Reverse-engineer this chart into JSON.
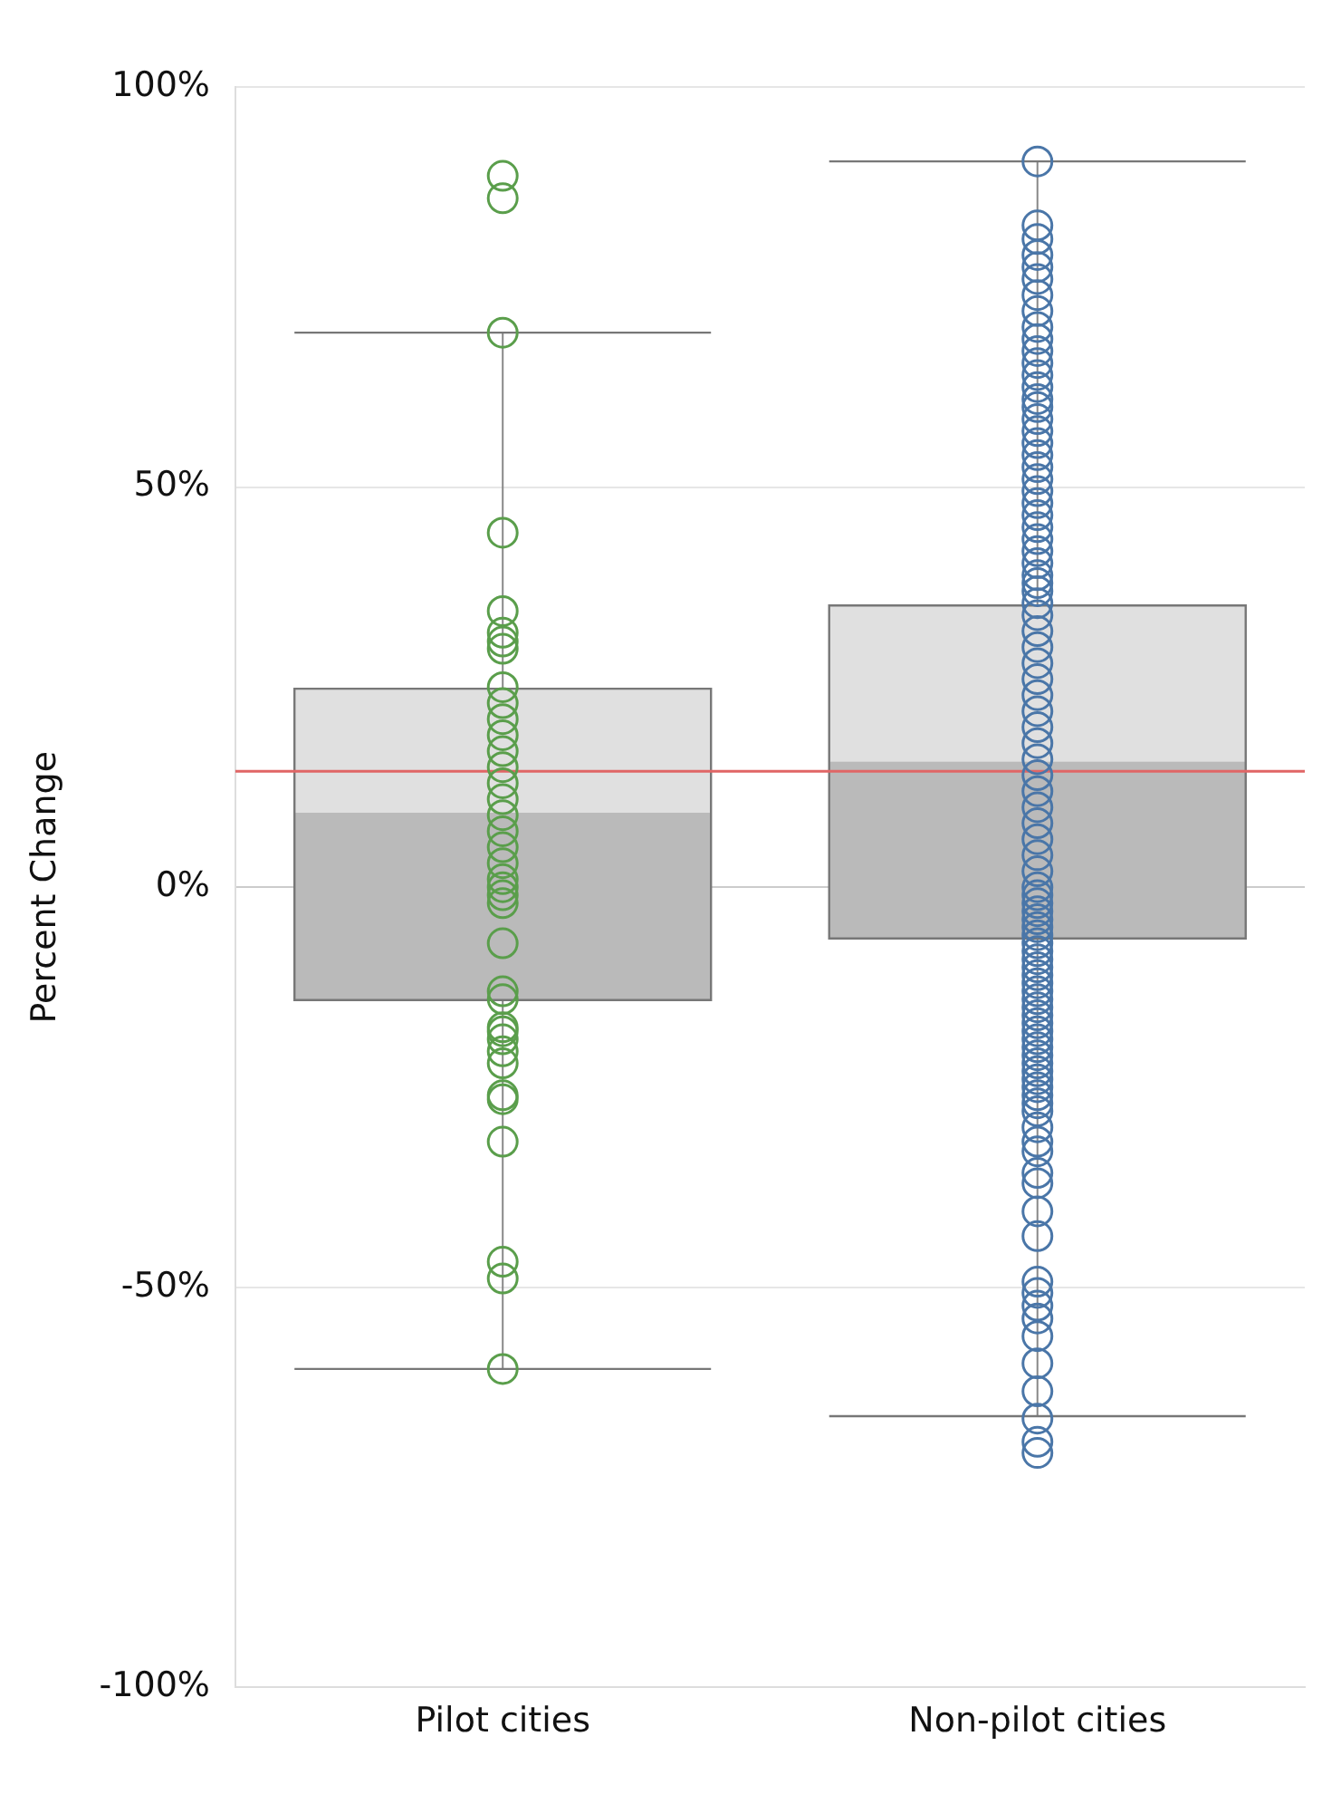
{
  "chart_data": {
    "type": "box",
    "ylabel": "Percent Change",
    "categories": [
      "Pilot cities",
      "Non-pilot cities"
    ],
    "boxes": [
      {
        "low": -60.2,
        "q1": -14.1,
        "median": 9.3,
        "q3": 24.8,
        "high": 69.3
      },
      {
        "low": -66.1,
        "q1": -6.4,
        "median": 15.7,
        "q3": 35.2,
        "high": 90.7
      }
    ],
    "series": [
      {
        "type": "scatter",
        "color": "#5a9e4b",
        "x": [
          "Pilot cities",
          "Pilot cities",
          "Pilot cities",
          "Pilot cities",
          "Pilot cities",
          "Pilot cities",
          "Pilot cities",
          "Pilot cities",
          "Pilot cities",
          "Pilot cities",
          "Pilot cities",
          "Pilot cities",
          "Pilot cities",
          "Pilot cities",
          "Pilot cities",
          "Pilot cities",
          "Pilot cities",
          "Pilot cities",
          "Pilot cities",
          "Pilot cities",
          "Pilot cities",
          "Pilot cities",
          "Pilot cities",
          "Pilot cities",
          "Pilot cities",
          "Pilot cities",
          "Pilot cities",
          "Pilot cities",
          "Pilot cities",
          "Pilot cities",
          "Pilot cities",
          "Pilot cities",
          "Pilot cities",
          "Pilot cities",
          "Pilot cities",
          "Pilot cities",
          "Pilot cities",
          "Pilot cities"
        ],
        "values": [
          88.9,
          86.1,
          69.3,
          44.3,
          34.5,
          31.8,
          30.7,
          29.8,
          25,
          23,
          21,
          19,
          17,
          15,
          13,
          11,
          9,
          7,
          5,
          3,
          1,
          0,
          -1,
          -2,
          -7,
          -13,
          -14,
          -17.5,
          -19,
          -20.5,
          -22,
          -26,
          -26.5,
          -31.8,
          -46.8,
          -48.9,
          -60.2,
          -18
        ]
      },
      {
        "type": "scatter",
        "color": "#4a76a8",
        "x": [
          "Non-pilot cities",
          "Non-pilot cities",
          "Non-pilot cities",
          "Non-pilot cities",
          "Non-pilot cities",
          "Non-pilot cities",
          "Non-pilot cities",
          "Non-pilot cities",
          "Non-pilot cities",
          "Non-pilot cities",
          "Non-pilot cities",
          "Non-pilot cities",
          "Non-pilot cities",
          "Non-pilot cities",
          "Non-pilot cities",
          "Non-pilot cities",
          "Non-pilot cities",
          "Non-pilot cities",
          "Non-pilot cities",
          "Non-pilot cities",
          "Non-pilot cities",
          "Non-pilot cities",
          "Non-pilot cities",
          "Non-pilot cities",
          "Non-pilot cities",
          "Non-pilot cities",
          "Non-pilot cities",
          "Non-pilot cities",
          "Non-pilot cities",
          "Non-pilot cities",
          "Non-pilot cities",
          "Non-pilot cities",
          "Non-pilot cities",
          "Non-pilot cities",
          "Non-pilot cities",
          "Non-pilot cities",
          "Non-pilot cities",
          "Non-pilot cities",
          "Non-pilot cities",
          "Non-pilot cities",
          "Non-pilot cities",
          "Non-pilot cities",
          "Non-pilot cities",
          "Non-pilot cities",
          "Non-pilot cities",
          "Non-pilot cities",
          "Non-pilot cities",
          "Non-pilot cities",
          "Non-pilot cities",
          "Non-pilot cities",
          "Non-pilot cities",
          "Non-pilot cities",
          "Non-pilot cities",
          "Non-pilot cities",
          "Non-pilot cities",
          "Non-pilot cities",
          "Non-pilot cities",
          "Non-pilot cities",
          "Non-pilot cities",
          "Non-pilot cities",
          "Non-pilot cities",
          "Non-pilot cities",
          "Non-pilot cities",
          "Non-pilot cities",
          "Non-pilot cities",
          "Non-pilot cities",
          "Non-pilot cities",
          "Non-pilot cities",
          "Non-pilot cities",
          "Non-pilot cities",
          "Non-pilot cities",
          "Non-pilot cities",
          "Non-pilot cities",
          "Non-pilot cities",
          "Non-pilot cities",
          "Non-pilot cities",
          "Non-pilot cities",
          "Non-pilot cities",
          "Non-pilot cities",
          "Non-pilot cities",
          "Non-pilot cities",
          "Non-pilot cities",
          "Non-pilot cities",
          "Non-pilot cities",
          "Non-pilot cities",
          "Non-pilot cities",
          "Non-pilot cities",
          "Non-pilot cities",
          "Non-pilot cities",
          "Non-pilot cities",
          "Non-pilot cities",
          "Non-pilot cities",
          "Non-pilot cities",
          "Non-pilot cities",
          "Non-pilot cities",
          "Non-pilot cities"
        ],
        "values": [
          90.7,
          82.7,
          81,
          79,
          77.5,
          76,
          74,
          72,
          70,
          68.5,
          67,
          65.5,
          64,
          62.5,
          61,
          60,
          58.5,
          57,
          55.5,
          54,
          52.5,
          51,
          49.5,
          48,
          46.5,
          45,
          43.5,
          42,
          40.5,
          39,
          38,
          37,
          35.5,
          34,
          32,
          30,
          28,
          26,
          24,
          22,
          20,
          18,
          16,
          14,
          12,
          10,
          8,
          6,
          4,
          2,
          0,
          -1,
          -2,
          -3,
          -4,
          -5,
          -6,
          -7,
          -8,
          -9,
          -10,
          -11,
          -12,
          -13,
          -14,
          -15,
          -16,
          -17,
          -18,
          -19,
          -20,
          -21,
          -22,
          -23,
          -24,
          -25,
          -26,
          -27,
          -28,
          -30,
          -31.8,
          -33,
          -35.7,
          -37,
          -40.5,
          -43.6,
          -49.3,
          -50.7,
          -52.3,
          -53.9,
          -56.1,
          -59.5,
          -63,
          -66.4,
          -69.3,
          -70.7
        ]
      }
    ],
    "ref_lines": [
      {
        "axis": "y",
        "value": 14.5,
        "color": "#e06666"
      }
    ],
    "ylim": [
      -100,
      100
    ],
    "yticks": [
      {
        "value": -100,
        "label": "-100%"
      },
      {
        "value": -50,
        "label": "-50%"
      },
      {
        "value": 0,
        "label": "0%"
      },
      {
        "value": 50,
        "label": "50%"
      },
      {
        "value": 100,
        "label": "100%"
      }
    ],
    "grid": "y",
    "legend": false,
    "marker": "circle"
  }
}
